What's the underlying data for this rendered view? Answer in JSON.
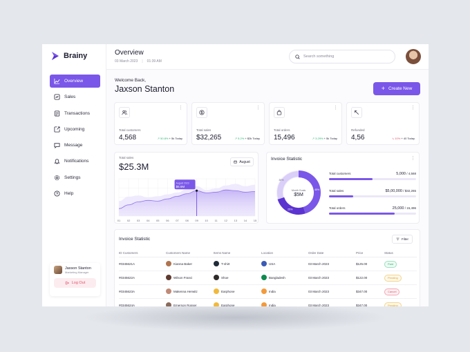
{
  "brand": {
    "name": "Brainy"
  },
  "nav": {
    "items": [
      {
        "label": "Overview",
        "icon": "chart-line-icon",
        "active": true
      },
      {
        "label": "Sales",
        "icon": "sales-icon"
      },
      {
        "label": "Transactions",
        "icon": "transactions-icon"
      },
      {
        "label": "Upcoming",
        "icon": "upcoming-icon"
      },
      {
        "label": "Message",
        "icon": "message-icon"
      },
      {
        "label": "Notifications",
        "icon": "bell-icon"
      },
      {
        "label": "Settings",
        "icon": "gear-icon"
      },
      {
        "label": "Help",
        "icon": "help-icon"
      }
    ]
  },
  "profile": {
    "name": "Jaxson Stanton",
    "role": "Marketing Manager",
    "logout_label": "Log Out"
  },
  "header": {
    "title": "Overview",
    "date": "03 March 2023",
    "time": "01:39 AM"
  },
  "search": {
    "placeholder": "Search something"
  },
  "welcome": {
    "greeting": "Welcome Back,",
    "name": "Jaxson Stanton"
  },
  "create_button": {
    "label": "Create New"
  },
  "cards": [
    {
      "label": "Total customers",
      "value": "4,568",
      "change": "50.8%",
      "direction": "up",
      "delta": "+ 5k Today",
      "icon": "users-icon"
    },
    {
      "label": "Total sales",
      "value": "$32,265",
      "change": "5.2%",
      "direction": "up",
      "delta": "+ $2k Today",
      "icon": "dollar-icon"
    },
    {
      "label": "Total orders",
      "value": "15,496",
      "change": "3.29%",
      "direction": "up",
      "delta": "+ 5k Today",
      "icon": "bag-icon"
    },
    {
      "label": "Refunded",
      "value": "4,56",
      "change": "10%",
      "direction": "down",
      "delta": "+ 40 Today",
      "icon": "refund-arrow-icon"
    }
  ],
  "sales_chart": {
    "label": "Total sales",
    "value": "$25.3M",
    "period": "August",
    "tooltip": {
      "date": "August 2023",
      "value": "$6.6M"
    },
    "chart_data": {
      "type": "area",
      "x": [
        "01",
        "02",
        "03",
        "04",
        "05",
        "06",
        "07",
        "08",
        "09",
        "10",
        "11",
        "12",
        "13",
        "14",
        "15"
      ],
      "series": [
        {
          "values": [
            40,
            52,
            55,
            50,
            53,
            58,
            63,
            72,
            80,
            70,
            74,
            82,
            86,
            80,
            84
          ]
        },
        {
          "values": [
            20,
            30,
            38,
            42,
            40,
            46,
            53,
            60,
            68,
            62,
            64,
            70,
            68,
            64,
            66
          ]
        }
      ],
      "highlight_index": 8,
      "ylim": [
        0,
        100
      ],
      "grid": true
    }
  },
  "invoice_stats": {
    "title": "Invoice Statistic",
    "donut": {
      "center_label": "Month Goals",
      "center_value": "$5M",
      "segments": [
        {
          "label": "",
          "value": 45,
          "color": "#7a57e8"
        },
        {
          "label": "",
          "value": 25,
          "color": "#5b34d0"
        },
        {
          "label": "",
          "value": 30,
          "color": "#d9cff8"
        }
      ],
      "labels": [
        "45%",
        "25%",
        "30%"
      ]
    },
    "rows": [
      {
        "label": "Total customers",
        "value": "5,000",
        "total": "4,568",
        "fraction": 0.5
      },
      {
        "label": "Total sales",
        "value": "$5,00,000",
        "total": "$32,265",
        "fraction": 0.28
      },
      {
        "label": "Total orders",
        "value": "25,000",
        "total": "15,496",
        "fraction": 0.75
      }
    ]
  },
  "invoice_table": {
    "title": "Invoice Statistic",
    "filter_label": "Filter",
    "columns": [
      "ID Customers",
      "Customers Name",
      "Items Name",
      "Location",
      "Order Date",
      "Price",
      "Status"
    ],
    "rows": [
      {
        "id": "#0345621A",
        "customer": "Kianna Baker",
        "item": "T-shirt",
        "location": "USA",
        "date": "03 March 2023",
        "price": "$125.00",
        "status": "Paid",
        "avatar_color": "#b0744f",
        "item_color": "#1f2b38",
        "flag_color": "#3b5bb5"
      },
      {
        "id": "#0345622A",
        "customer": "Wilson Franci",
        "item": "Shoe",
        "location": "Bangladesh",
        "date": "03 March 2023",
        "price": "$122.00",
        "status": "Pending",
        "avatar_color": "#5e3a2e",
        "item_color": "#2f2a2a",
        "flag_color": "#0f8a4f"
      },
      {
        "id": "#0345623A",
        "customer": "Makenna Herwitz",
        "item": "Earphone",
        "location": "India",
        "date": "03 March 2023",
        "price": "$347.00",
        "status": "Cancel",
        "avatar_color": "#c08a76",
        "item_color": "#f1b93c",
        "flag_color": "#f39a3c"
      },
      {
        "id": "#0345624A",
        "customer": "Emerson Rosser",
        "item": "Earphone",
        "location": "India",
        "date": "03 March 2023",
        "price": "$347.00",
        "status": "Pending",
        "avatar_color": "#8a6a5a",
        "item_color": "#f1b93c",
        "flag_color": "#f39a3c"
      }
    ]
  },
  "colors": {
    "accent": "#7a57e8",
    "paid": "#2bb673",
    "pending": "#e3a120",
    "cancel": "#e0536b"
  }
}
